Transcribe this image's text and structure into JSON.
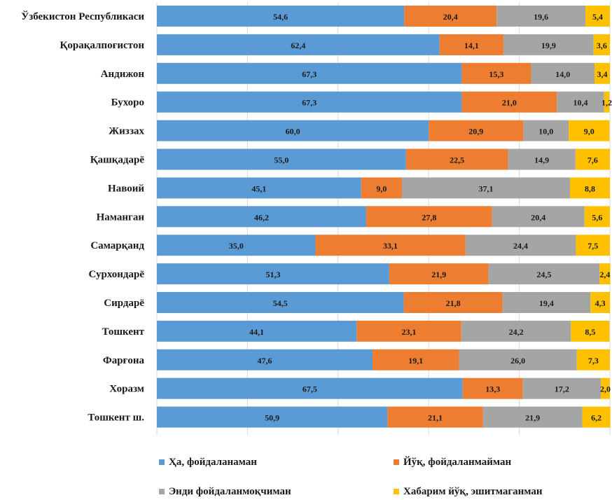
{
  "chart_data": {
    "type": "bar",
    "orientation": "horizontal",
    "stacked": true,
    "categories": [
      "Ўзбекистон Республикаси",
      "Қорақалпоғистон",
      "Андижон",
      "Бухоро",
      "Жиззах",
      "Қашқадарё",
      "Навоий",
      "Наманган",
      "Самарқанд",
      "Сурхондарё",
      "Сирдарё",
      "Тошкент",
      "Фарғона",
      "Хоразм",
      "Тошкент ш."
    ],
    "series": [
      {
        "name": "Ҳа, фойдаланаман",
        "color": "#5b9bd5",
        "values": [
          54.6,
          62.4,
          67.3,
          67.3,
          60.0,
          55.0,
          45.1,
          46.2,
          35.0,
          51.3,
          54.5,
          44.1,
          47.6,
          67.5,
          50.9
        ],
        "labels": [
          "54,6",
          "62,4",
          "67,3",
          "67,3",
          "60,0",
          "55,0",
          "45,1",
          "46,2",
          "35,0",
          "51,3",
          "54,5",
          "44,1",
          "47,6",
          "67,5",
          "50,9"
        ]
      },
      {
        "name": "Йўқ, фойдаланмайман",
        "color": "#ed7d31",
        "values": [
          20.4,
          14.1,
          15.3,
          21.0,
          20.9,
          22.5,
          9.0,
          27.8,
          33.1,
          21.9,
          21.8,
          23.1,
          19.1,
          13.3,
          21.1
        ],
        "labels": [
          "20,4",
          "14,1",
          "15,3",
          "21,0",
          "20,9",
          "22,5",
          "9,0",
          "27,8",
          "33,1",
          "21,9",
          "21,8",
          "23,1",
          "19,1",
          "13,3",
          "21,1"
        ]
      },
      {
        "name": "Энди фойдаланмоқчиман",
        "color": "#a5a5a5",
        "values": [
          19.6,
          19.9,
          14.0,
          10.4,
          10.0,
          14.9,
          37.1,
          20.4,
          24.4,
          24.5,
          19.4,
          24.2,
          26.0,
          17.2,
          21.9
        ],
        "labels": [
          "19,6",
          "19,9",
          "14,0",
          "10,4",
          "10,0",
          "14,9",
          "37,1",
          "20,4",
          "24,4",
          "24,5",
          "19,4",
          "24,2",
          "26,0",
          "17,2",
          "21,9"
        ]
      },
      {
        "name": "Хабарим йўқ, эшитмаганман",
        "color": "#ffc000",
        "values": [
          5.4,
          3.6,
          3.4,
          1.2,
          9.0,
          7.6,
          8.8,
          5.6,
          7.5,
          2.4,
          4.3,
          8.5,
          7.3,
          2.0,
          6.2
        ],
        "labels": [
          "5,4",
          "3,6",
          "3,4",
          "1,2",
          "9,0",
          "7,6",
          "8,8",
          "5,6",
          "7,5",
          "2,4",
          "4,3",
          "8,5",
          "7,3",
          "2,0",
          "6,2"
        ]
      }
    ],
    "xlim": [
      0,
      100
    ],
    "grid": true,
    "legend_position": "bottom"
  }
}
